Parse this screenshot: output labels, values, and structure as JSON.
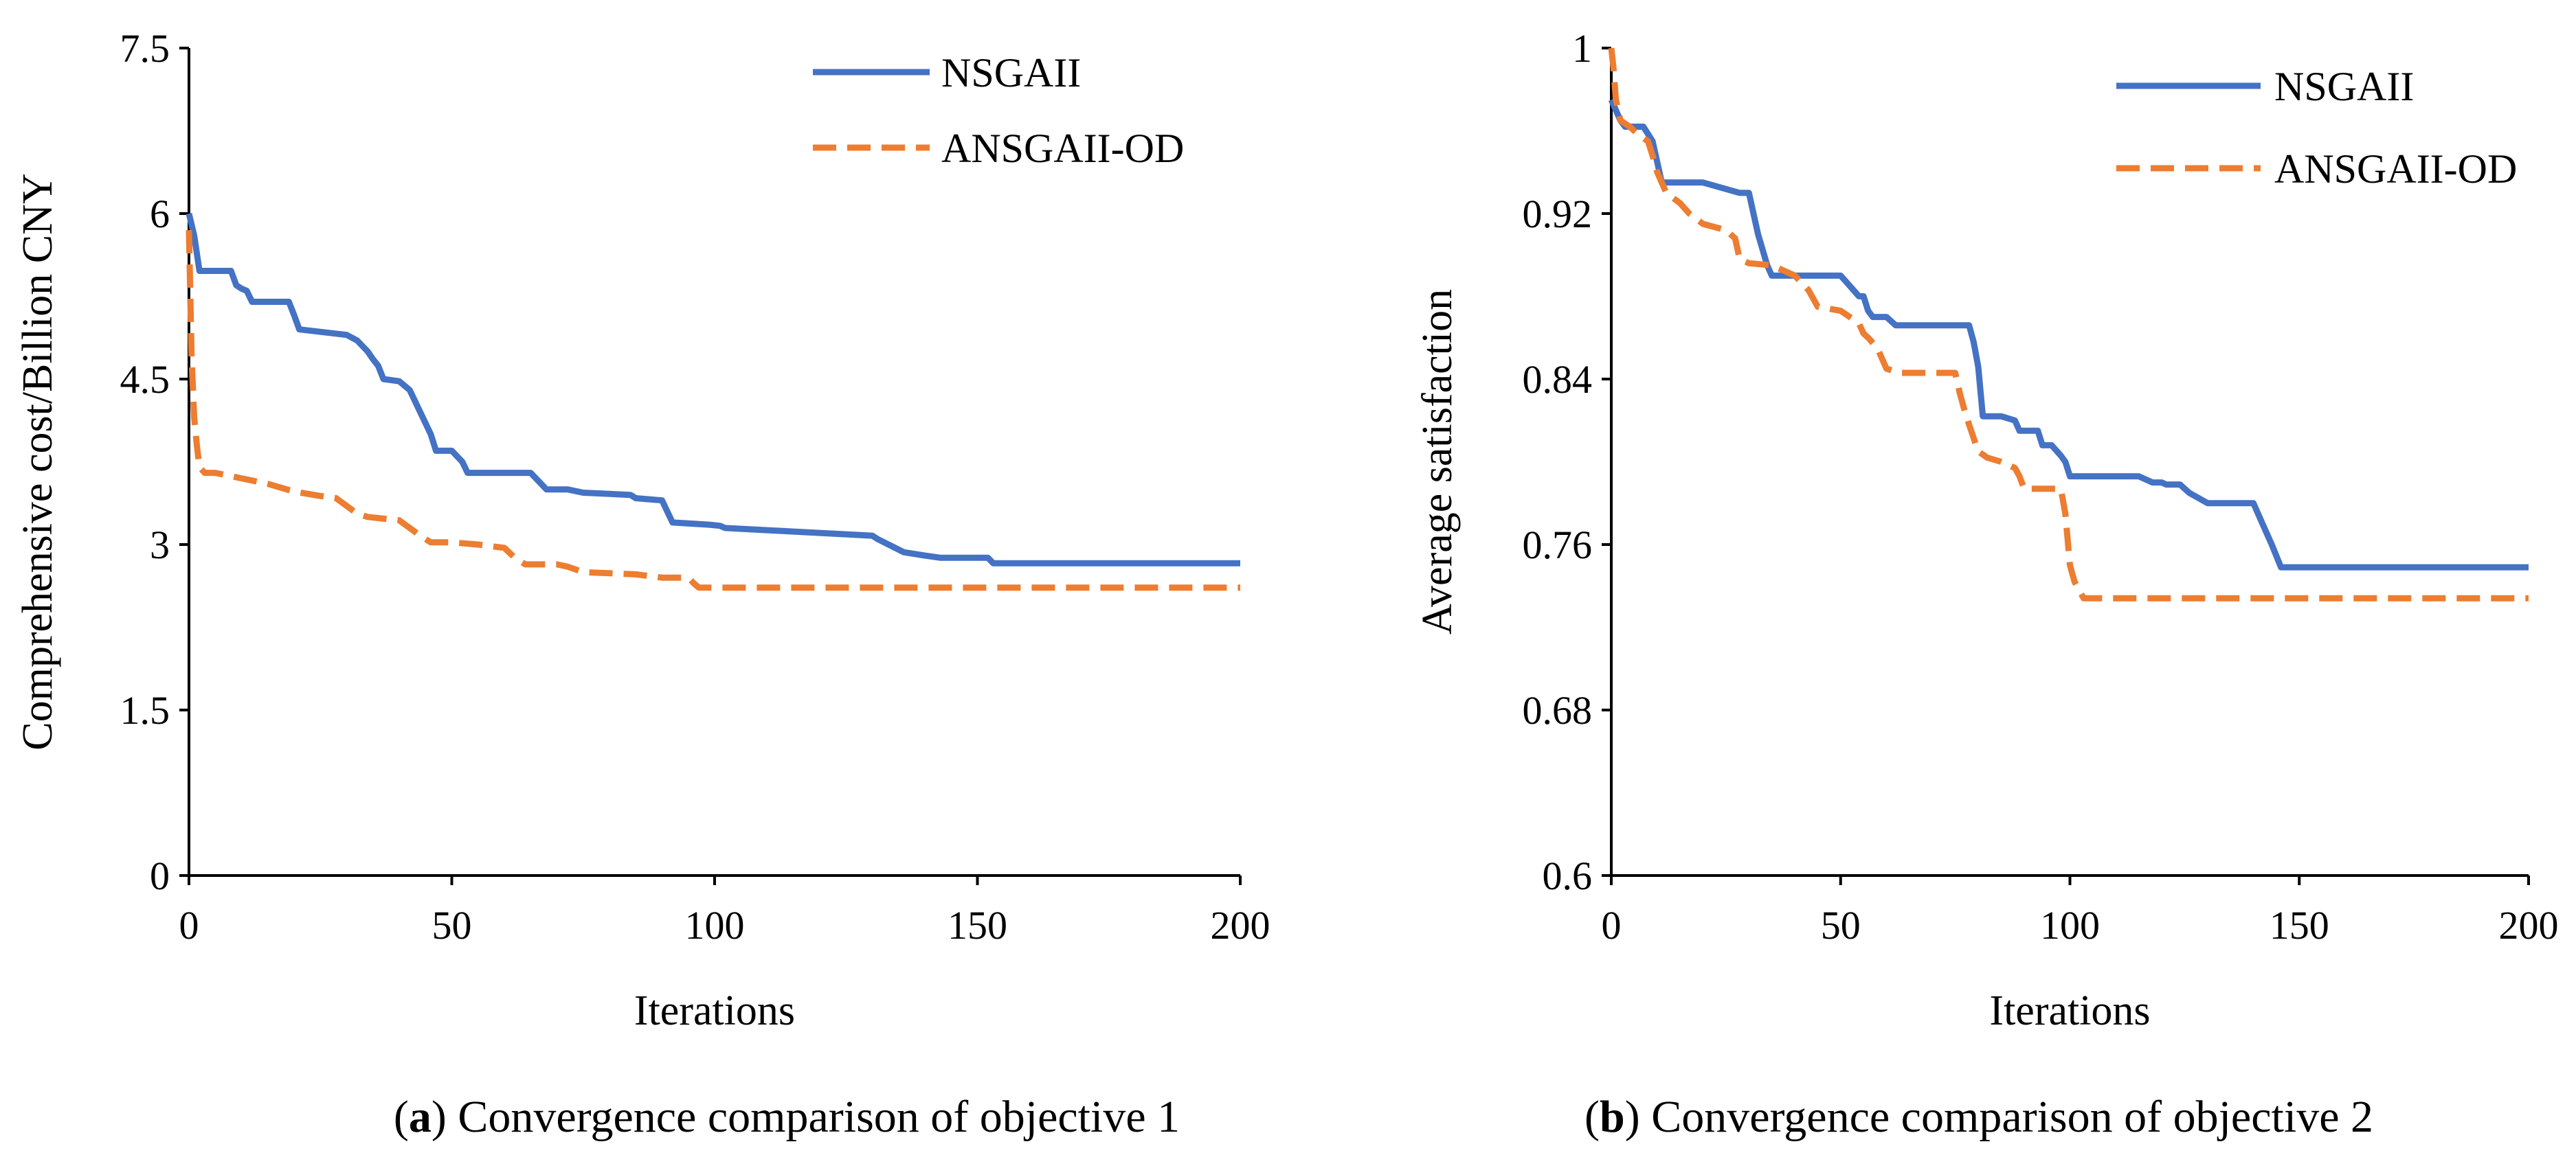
{
  "colors": {
    "nsgaii": "#4472C4",
    "ansgaii_od": "#ED7D31",
    "axis": "#000000"
  },
  "chart_data": [
    {
      "type": "line",
      "panel": "a",
      "caption_letter": "a",
      "caption_text": "Convergence comparison of objective 1",
      "xlabel": "Iterations",
      "ylabel": "Comprehensive cost/Billion CNY",
      "xlim": [
        0,
        200
      ],
      "ylim": [
        0,
        7.5
      ],
      "xticks": [
        0,
        50,
        100,
        150,
        200
      ],
      "xtick_labels": [
        "0",
        "50",
        "100",
        "150",
        "200"
      ],
      "yticks": [
        0,
        1.5,
        3,
        4.5,
        6,
        7.5
      ],
      "ytick_labels": [
        "0",
        "1.5",
        "3",
        "4.5",
        "6",
        "7.5"
      ],
      "legend_position": "top-right",
      "series": [
        {
          "name": "NSGAII",
          "style": "solid",
          "x": [
            0,
            1,
            2,
            8,
            9,
            10,
            11,
            12,
            13,
            14,
            19,
            20,
            21,
            30,
            32,
            34,
            35,
            36,
            37,
            40,
            42,
            44,
            46,
            47,
            50,
            52,
            53,
            56,
            65,
            67,
            68,
            72,
            75,
            84,
            85,
            90,
            91,
            92,
            99,
            101,
            102,
            110,
            130,
            131,
            136,
            140,
            143,
            152,
            153,
            200
          ],
          "y": [
            6.0,
            5.8,
            5.48,
            5.48,
            5.35,
            5.32,
            5.3,
            5.2,
            5.2,
            5.2,
            5.2,
            5.08,
            4.95,
            4.9,
            4.85,
            4.75,
            4.68,
            4.62,
            4.5,
            4.48,
            4.4,
            4.2,
            4.0,
            3.85,
            3.85,
            3.75,
            3.65,
            3.65,
            3.65,
            3.55,
            3.5,
            3.5,
            3.47,
            3.45,
            3.42,
            3.4,
            3.3,
            3.2,
            3.18,
            3.17,
            3.15,
            3.13,
            3.08,
            3.05,
            2.93,
            2.9,
            2.88,
            2.88,
            2.83,
            2.83
          ]
        },
        {
          "name": "ANSGAII-OD",
          "style": "dashed",
          "x": [
            0,
            0.5,
            1,
            1.5,
            2,
            3,
            5,
            10,
            15,
            20,
            25,
            28,
            30,
            32,
            34,
            40,
            42,
            44,
            46,
            50,
            55,
            60,
            62,
            64,
            70,
            72,
            75,
            85,
            90,
            95,
            96,
            97,
            200
          ],
          "y": [
            5.85,
            4.7,
            4.15,
            3.9,
            3.7,
            3.65,
            3.65,
            3.6,
            3.55,
            3.48,
            3.44,
            3.42,
            3.35,
            3.28,
            3.25,
            3.22,
            3.15,
            3.08,
            3.02,
            3.02,
            3.0,
            2.97,
            2.88,
            2.82,
            2.82,
            2.8,
            2.75,
            2.73,
            2.7,
            2.7,
            2.65,
            2.61,
            2.61
          ]
        }
      ]
    },
    {
      "type": "line",
      "panel": "b",
      "caption_letter": "b",
      "caption_text": "Convergence comparison of objective 2",
      "xlabel": "Iterations",
      "ylabel": "Average satisfaction",
      "xlim": [
        0,
        200
      ],
      "ylim": [
        0.6,
        1
      ],
      "xticks": [
        0,
        50,
        100,
        150,
        200
      ],
      "xtick_labels": [
        "0",
        "50",
        "100",
        "150",
        "200"
      ],
      "yticks": [
        0.6,
        0.68,
        0.76,
        0.84,
        0.92,
        1
      ],
      "ytick_labels": [
        "0.6",
        "0.68",
        "0.76",
        "0.84",
        "0.92",
        "1"
      ],
      "legend_position": "top-right",
      "series": [
        {
          "name": "NSGAII",
          "style": "solid",
          "x": [
            0,
            2,
            3,
            7,
            9,
            10,
            11,
            12,
            20,
            28,
            30,
            32,
            34,
            35,
            50,
            52,
            54,
            55,
            56,
            57,
            60,
            62,
            65,
            78,
            79,
            80,
            81,
            85,
            88,
            89,
            90,
            93,
            94,
            96,
            98,
            99,
            100,
            115,
            118,
            120,
            121,
            124,
            126,
            130,
            132,
            140,
            142,
            144,
            146,
            200
          ],
          "y": [
            0.975,
            0.965,
            0.962,
            0.962,
            0.955,
            0.945,
            0.935,
            0.935,
            0.935,
            0.93,
            0.93,
            0.91,
            0.895,
            0.89,
            0.89,
            0.885,
            0.88,
            0.88,
            0.873,
            0.87,
            0.87,
            0.866,
            0.866,
            0.866,
            0.858,
            0.846,
            0.822,
            0.822,
            0.82,
            0.815,
            0.815,
            0.815,
            0.808,
            0.808,
            0.803,
            0.8,
            0.793,
            0.793,
            0.79,
            0.79,
            0.789,
            0.789,
            0.785,
            0.78,
            0.78,
            0.78,
            0.77,
            0.76,
            0.749,
            0.749
          ]
        },
        {
          "name": "ANSGAII-OD",
          "style": "dashed",
          "x": [
            0,
            0.5,
            1,
            2,
            4,
            6,
            8,
            9,
            10,
            11,
            12,
            15,
            17,
            20,
            25,
            27,
            28,
            30,
            35,
            40,
            43,
            45,
            50,
            52,
            54,
            55,
            56,
            58,
            60,
            63,
            75,
            76,
            77,
            78,
            80,
            82,
            85,
            88,
            89,
            90,
            98,
            99,
            100,
            101,
            102,
            103,
            200
          ],
          "y": [
            1.0,
            0.99,
            0.975,
            0.965,
            0.962,
            0.958,
            0.955,
            0.948,
            0.94,
            0.935,
            0.93,
            0.925,
            0.92,
            0.915,
            0.912,
            0.908,
            0.898,
            0.896,
            0.895,
            0.89,
            0.883,
            0.875,
            0.873,
            0.87,
            0.867,
            0.862,
            0.86,
            0.855,
            0.845,
            0.843,
            0.843,
            0.833,
            0.825,
            0.818,
            0.805,
            0.802,
            0.8,
            0.797,
            0.793,
            0.787,
            0.787,
            0.775,
            0.75,
            0.742,
            0.738,
            0.734,
            0.734
          ]
        }
      ]
    }
  ]
}
